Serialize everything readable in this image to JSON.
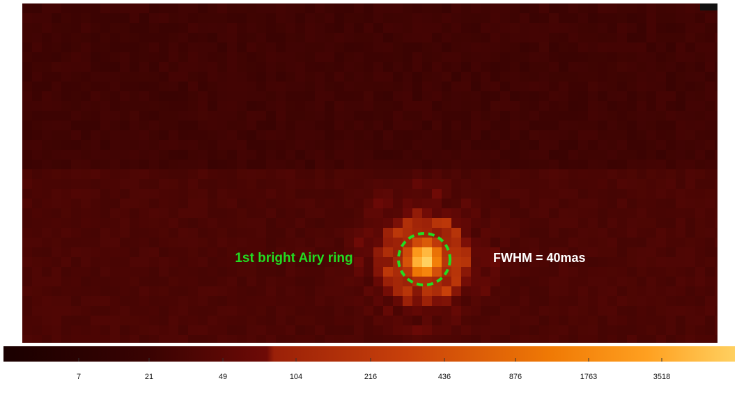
{
  "annotations": {
    "ring_label": "1st bright Airy ring",
    "fwhm_label": "FWHM = 40mas"
  },
  "colorbar": {
    "ticks": [
      7,
      21,
      49,
      104,
      216,
      436,
      876,
      1763,
      3518
    ]
  }
}
